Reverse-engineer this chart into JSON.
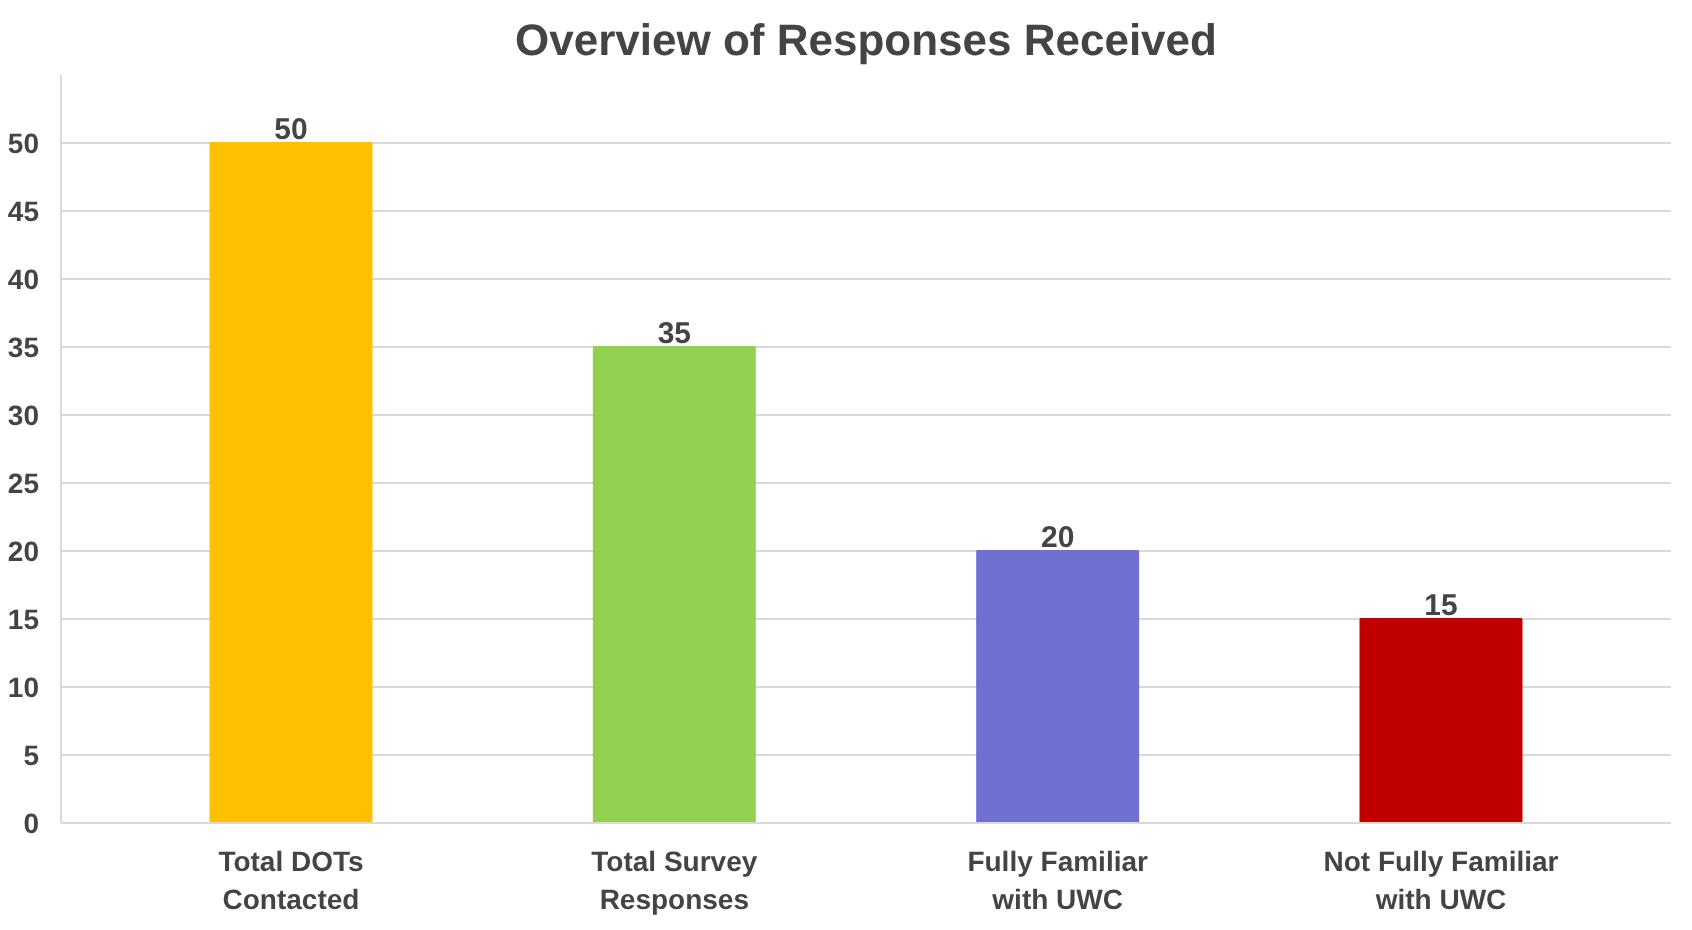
{
  "chart_data": {
    "type": "bar",
    "title": "Overview of Responses Received",
    "categories": [
      "Total DOTs\nContacted",
      "Total Survey\nResponses",
      "Fully Familiar\nwith UWC",
      "Not Fully Familiar\nwith UWC"
    ],
    "values": [
      50,
      35,
      20,
      15
    ],
    "colors": [
      "#ffc000",
      "#92d050",
      "#7070d0",
      "#c00000"
    ],
    "ylim": [
      0,
      55
    ],
    "yticks": [
      0,
      5,
      10,
      15,
      20,
      25,
      30,
      35,
      40,
      45,
      50
    ],
    "grid": "y",
    "data_labels": true
  }
}
